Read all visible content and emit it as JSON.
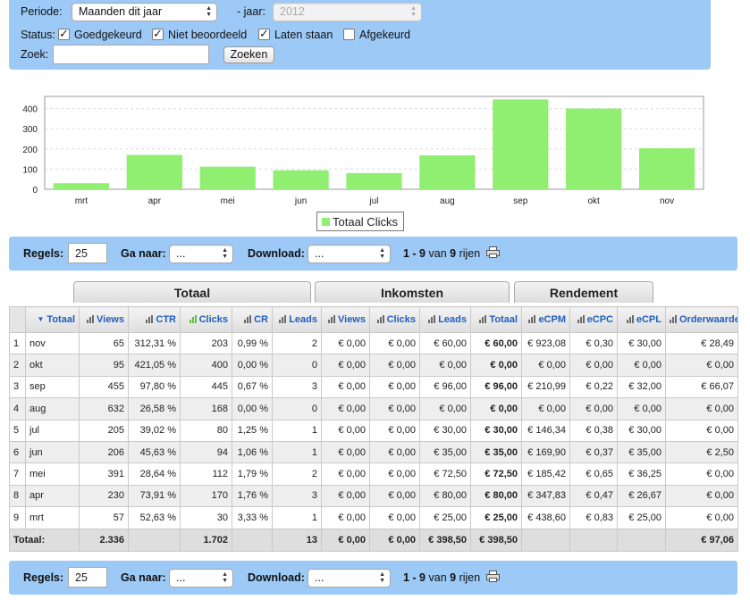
{
  "filter": {
    "periode_label": "Periode:",
    "periode_value": "Maanden dit jaar",
    "jaar_label": "- jaar:",
    "jaar_value": "2012",
    "status_label": "Status:",
    "statuses": [
      {
        "label": "Goedgekeurd",
        "checked": true
      },
      {
        "label": "Niet beoordeeld",
        "checked": true
      },
      {
        "label": "Laten staan",
        "checked": true
      },
      {
        "label": "Afgekeurd",
        "checked": false
      }
    ],
    "zoek_label": "Zoek:",
    "zoek_value": "",
    "zoek_button": "Zoeken"
  },
  "chart_data": {
    "type": "bar",
    "categories": [
      "mrt",
      "apr",
      "mei",
      "jun",
      "jul",
      "aug",
      "sep",
      "okt",
      "nov"
    ],
    "series": [
      {
        "name": "Totaal Clicks",
        "values": [
          30,
          170,
          112,
          94,
          80,
          168,
          445,
          400,
          203
        ],
        "color": "#90ee71"
      }
    ],
    "yticks": [
      "0",
      "100",
      "200",
      "300",
      "400"
    ],
    "ylim": [
      0,
      460
    ],
    "grid": true,
    "legend": "bottom-center"
  },
  "toolbar": {
    "regels_label": "Regels:",
    "regels_value": "25",
    "ganaar_label": "Ga naar:",
    "ganaar_value": "...",
    "download_label": "Download:",
    "download_value": "...",
    "range": "1 - 9",
    "van": "van",
    "total": "9",
    "rijen": "rijen"
  },
  "groups": [
    "Totaal",
    "Inkomsten",
    "Rendement"
  ],
  "table": {
    "columns": [
      "",
      "Totaal",
      "Views",
      "CTR",
      "Clicks",
      "CR",
      "Leads",
      "Views",
      "Clicks",
      "Leads",
      "Totaal",
      "eCPM",
      "eCPC",
      "eCPL",
      "Orderwaarde"
    ],
    "rows": [
      [
        "1",
        "nov",
        "65",
        "312,31 %",
        "203",
        "0,99 %",
        "2",
        "€ 0,00",
        "€ 0,00",
        "€ 60,00",
        "€ 60,00",
        "€ 923,08",
        "€ 0,30",
        "€ 30,00",
        "€ 28,49"
      ],
      [
        "2",
        "okt",
        "95",
        "421,05 %",
        "400",
        "0,00 %",
        "0",
        "€ 0,00",
        "€ 0,00",
        "€ 0,00",
        "€ 0,00",
        "€ 0,00",
        "€ 0,00",
        "€ 0,00",
        "€ 0,00"
      ],
      [
        "3",
        "sep",
        "455",
        "97,80 %",
        "445",
        "0,67 %",
        "3",
        "€ 0,00",
        "€ 0,00",
        "€ 96,00",
        "€ 96,00",
        "€ 210,99",
        "€ 0,22",
        "€ 32,00",
        "€ 66,07"
      ],
      [
        "4",
        "aug",
        "632",
        "26,58 %",
        "168",
        "0,00 %",
        "0",
        "€ 0,00",
        "€ 0,00",
        "€ 0,00",
        "€ 0,00",
        "€ 0,00",
        "€ 0,00",
        "€ 0,00",
        "€ 0,00"
      ],
      [
        "5",
        "jul",
        "205",
        "39,02 %",
        "80",
        "1,25 %",
        "1",
        "€ 0,00",
        "€ 0,00",
        "€ 30,00",
        "€ 30,00",
        "€ 146,34",
        "€ 0,38",
        "€ 30,00",
        "€ 0,00"
      ],
      [
        "6",
        "jun",
        "206",
        "45,63 %",
        "94",
        "1,06 %",
        "1",
        "€ 0,00",
        "€ 0,00",
        "€ 35,00",
        "€ 35,00",
        "€ 169,90",
        "€ 0,37",
        "€ 35,00",
        "€ 2,50"
      ],
      [
        "7",
        "mei",
        "391",
        "28,64 %",
        "112",
        "1,79 %",
        "2",
        "€ 0,00",
        "€ 0,00",
        "€ 72,50",
        "€ 72,50",
        "€ 185,42",
        "€ 0,65",
        "€ 36,25",
        "€ 0,00"
      ],
      [
        "8",
        "apr",
        "230",
        "73,91 %",
        "170",
        "1,76 %",
        "3",
        "€ 0,00",
        "€ 0,00",
        "€ 80,00",
        "€ 80,00",
        "€ 347,83",
        "€ 0,47",
        "€ 26,67",
        "€ 0,00"
      ],
      [
        "9",
        "mrt",
        "57",
        "52,63 %",
        "30",
        "3,33 %",
        "1",
        "€ 0,00",
        "€ 0,00",
        "€ 25,00",
        "€ 25,00",
        "€ 438,60",
        "€ 0,83",
        "€ 25,00",
        "€ 0,00"
      ]
    ],
    "footer": [
      "Totaal:",
      "",
      "2.336",
      "",
      "1.702",
      "",
      "13",
      "€ 0,00",
      "€ 0,00",
      "€ 398,50",
      "€ 398,50",
      "",
      "",
      "",
      "€ 97,06"
    ]
  },
  "colors": {
    "panel": "#9cc9f5",
    "bar": "#90ee71",
    "header_link": "#1f5fbf"
  }
}
